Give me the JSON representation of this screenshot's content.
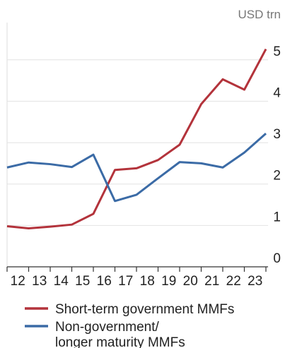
{
  "chart_data": {
    "type": "line",
    "unit_label": "USD trn",
    "x": [
      11.5,
      12.5,
      13.5,
      14.5,
      15.5,
      16.5,
      17.5,
      18.5,
      19.5,
      20.5,
      21.5,
      22.5,
      23.5
    ],
    "xlim": [
      11.5,
      23.6
    ],
    "xticks": [
      12,
      13,
      14,
      15,
      16,
      17,
      18,
      19,
      20,
      21,
      22,
      23
    ],
    "ylim": [
      0,
      5.9
    ],
    "yticks": [
      0,
      1,
      2,
      3,
      4,
      5
    ],
    "grid": true,
    "series": [
      {
        "name": "Short-term government MMFs",
        "color": "#b3333b",
        "values": [
          0.98,
          0.93,
          0.97,
          1.02,
          1.28,
          2.34,
          2.38,
          2.58,
          2.95,
          3.93,
          4.53,
          4.28,
          5.26
        ]
      },
      {
        "name": "Non-government/\nlonger maturity MMFs",
        "color": "#3b6ba6",
        "values": [
          2.4,
          2.52,
          2.48,
          2.41,
          2.71,
          1.59,
          1.74,
          2.14,
          2.53,
          2.5,
          2.4,
          2.76,
          3.22
        ]
      }
    ]
  }
}
